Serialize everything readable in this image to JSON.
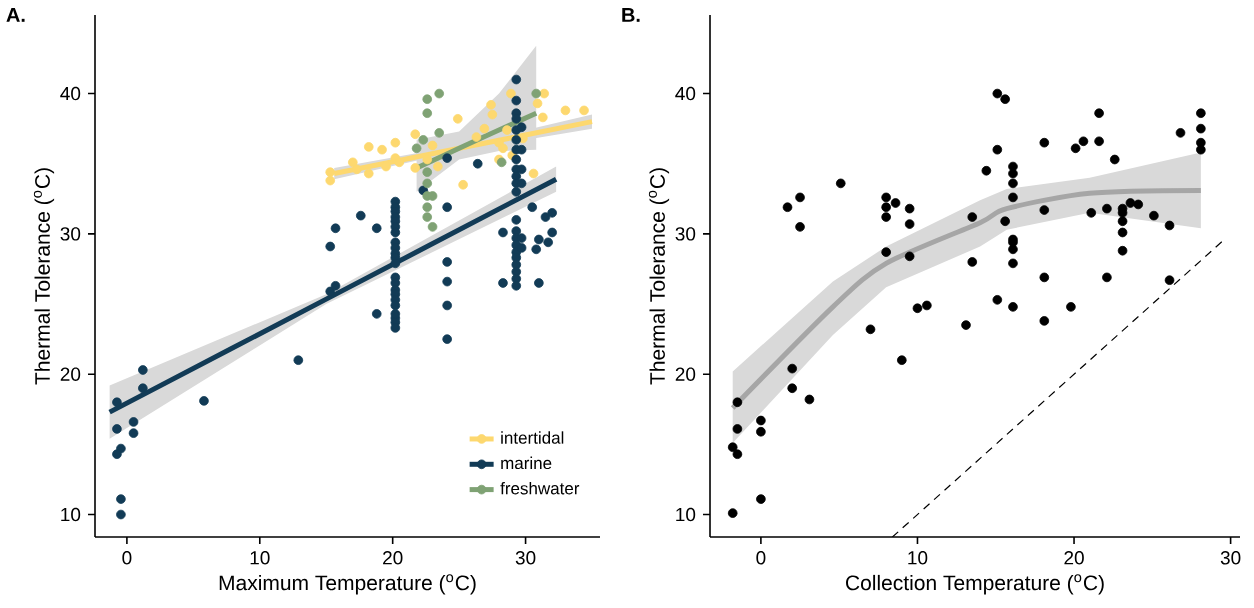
{
  "chart_data": [
    {
      "type": "scatter",
      "title": "**A.**",
      "xlabel": "Maximum Temperature ($^{o}$C)",
      "ylabel": "Thermal Tolerance ($^{o}$C)",
      "xlim": [
        -2.4,
        35.6
      ],
      "ylim": [
        8.4,
        45.6
      ],
      "xticks": [
        0,
        10,
        20,
        30
      ],
      "yticks": [
        10,
        20,
        30,
        40
      ],
      "marker": "circle",
      "legend": "bottom right",
      "series": [
        {
          "name": "intertidal",
          "color": "#fdd86f",
          "x": [
            15.3,
            15.3,
            17.0,
            17.3,
            18.2,
            18.2,
            19.2,
            19.5,
            20.2,
            20.2,
            20.5,
            21.7,
            21.7,
            22.6,
            23.0,
            23.4,
            24.9,
            25.3,
            26.3,
            26.9,
            27.4,
            27.5,
            28.0,
            28.3,
            28.6,
            29.0,
            28.0,
            28.9,
            31.4,
            30.9,
            31.3,
            30.6,
            33.0,
            34.4,
            29.8
          ],
          "values": [
            34.4,
            33.8,
            35.1,
            34.6,
            36.2,
            34.3,
            36.0,
            34.8,
            36.5,
            35.4,
            35.1,
            37.1,
            34.7,
            35.3,
            36.3,
            34.8,
            38.2,
            33.5,
            36.9,
            37.5,
            39.2,
            38.5,
            36.5,
            36.1,
            37.4,
            35.6,
            35.3,
            40.0,
            40.0,
            39.3,
            38.3,
            34.3,
            38.8,
            38.8,
            36.8
          ]
        },
        {
          "name": "marine",
          "color": "#123b56",
          "x": [
            -0.75,
            1.2,
            1.2,
            -0.75,
            0.5,
            0.5,
            -0.45,
            -0.75,
            -0.45,
            -0.45,
            5.8,
            12.9,
            15.3,
            15.7,
            15.3,
            15.7,
            17.6,
            18.8,
            20.2,
            20.2,
            20.2,
            20.2,
            20.2,
            20.2,
            20.2,
            20.2,
            20.2,
            20.2,
            20.2,
            20.2,
            20.2,
            20.2,
            20.2,
            20.2,
            20.2,
            20.2,
            20.2,
            20.2,
            20.2,
            20.2,
            18.8,
            24.1,
            24.1,
            24.1,
            24.1,
            24.1,
            24.1,
            22.3,
            26.4,
            29.3,
            29.3,
            29.3,
            29.3,
            29.3,
            29.3,
            29.3,
            29.3,
            29.3,
            29.3,
            29.3,
            29.3,
            29.3,
            29.3,
            29.3,
            29.3,
            29.3,
            29.3,
            29.3,
            29.3,
            29.3,
            29.3,
            29.7,
            29.7,
            29.7,
            29.7,
            29.7,
            29.7,
            28.3,
            28.3,
            30.5,
            31.0,
            30.8,
            31.0,
            31.7,
            32.0,
            31.5,
            32.0
          ],
          "values": [
            18.0,
            20.3,
            19.0,
            16.1,
            16.6,
            15.8,
            14.7,
            14.3,
            11.1,
            10.0,
            18.1,
            21.0,
            29.1,
            30.4,
            25.9,
            26.3,
            31.3,
            30.4,
            32.3,
            31.9,
            31.6,
            31.2,
            30.9,
            30.5,
            30.1,
            29.4,
            29.0,
            28.6,
            28.3,
            27.9,
            26.9,
            26.5,
            26.0,
            25.7,
            25.3,
            24.9,
            24.0,
            23.7,
            23.3,
            24.3,
            24.3,
            31.9,
            28.0,
            26.6,
            24.9,
            22.5,
            35.4,
            33.1,
            35.0,
            41.0,
            39.5,
            38.6,
            38.2,
            37.4,
            36.7,
            36.0,
            35.3,
            34.6,
            34.1,
            33.6,
            33.0,
            31.0,
            30.2,
            29.7,
            29.2,
            28.7,
            28.3,
            27.8,
            27.3,
            26.8,
            26.3,
            37.6,
            36.0,
            34.6,
            33.6,
            29.7,
            29.0,
            30.1,
            26.5,
            31.9,
            26.5,
            28.9,
            29.6,
            29.4,
            30.1,
            31.2,
            31.5
          ]
        },
        {
          "name": "freshwater",
          "color": "#7fa274",
          "x": [
            23.5,
            22.6,
            22.6,
            23.5,
            22.3,
            21.8,
            22.6,
            22.6,
            22.6,
            23.0,
            22.6,
            22.6,
            23.0,
            30.8,
            28.2
          ],
          "values": [
            40.0,
            39.6,
            38.6,
            37.2,
            36.7,
            36.1,
            34.4,
            33.6,
            32.7,
            32.7,
            31.9,
            31.2,
            30.5,
            40.0,
            35.1
          ]
        },
        {
          "type": "line",
          "marker": "none",
          "color": "#123b56",
          "line_style": "solid",
          "x": [
            -1.3,
            15,
            32.3
          ],
          "values": [
            17.3,
            25.35,
            33.9
          ],
          "lower": [
            15.4,
            25.0,
            33.0
          ],
          "upper": [
            19.2,
            25.7,
            34.8
          ]
        },
        {
          "type": "line",
          "marker": "none",
          "color": "#fdd86f",
          "line_style": "solid",
          "x": [
            15.6,
            25,
            35
          ],
          "values": [
            34.3,
            36.1,
            38.0
          ],
          "lower": [
            33.9,
            35.9,
            37.5
          ],
          "upper": [
            34.7,
            36.3,
            38.5
          ]
        },
        {
          "type": "line",
          "marker": "none",
          "color": "#7fa274",
          "line_style": "solid",
          "x": [
            21.8,
            25,
            28,
            30.8
          ],
          "values": [
            34.7,
            36.1,
            37.4,
            38.6
          ],
          "lower": [
            33.0,
            35.3,
            35.9,
            36.0
          ],
          "upper": [
            36.7,
            37.3,
            40.0,
            43.4
          ]
        }
      ]
    },
    {
      "type": "scatter",
      "title": "**B.**",
      "xlabel": "Collection Temperature ($^{o}$C)",
      "ylabel": "Thermal Tolerance ($^{o}$C)",
      "xlim": [
        -3.25,
        30.6
      ],
      "ylim": [
        8.4,
        45.6
      ],
      "xticks": [
        0,
        10,
        20,
        30
      ],
      "yticks": [
        10,
        20,
        30,
        40
      ],
      "marker": "circle",
      "series": [
        {
          "color": "#000000",
          "x": [
            -1.5,
            -1.5,
            -1.8,
            -1.5,
            -1.8,
            0,
            0,
            0,
            2.0,
            2.0,
            3.1,
            1.7,
            2.5,
            2.5,
            5.1,
            7.0,
            8.0,
            8.6,
            8.0,
            8.0,
            8.0,
            9.5,
            9.5,
            9.5,
            9.0,
            10.0,
            10.6,
            13.1,
            13.5,
            13.5,
            15.1,
            15.6,
            15.1,
            14.4,
            16.1,
            16.1,
            16.1,
            16.1,
            15.6,
            16.1,
            16.1,
            16.1,
            16.1,
            16.1,
            15.1,
            18.1,
            18.1,
            18.1,
            18.1,
            19.8,
            20.1,
            20.6,
            21.6,
            21.6,
            21.1,
            22.1,
            22.1,
            22.6,
            23.1,
            23.1,
            23.1,
            23.1,
            23.1,
            23.6,
            24.1,
            25.1,
            26.1,
            26.1,
            26.8,
            28.1,
            28.1,
            28.1,
            28.1
          ],
          "values": [
            18.0,
            16.1,
            14.8,
            14.3,
            10.1,
            16.7,
            15.9,
            11.1,
            20.4,
            19.0,
            18.2,
            31.9,
            32.6,
            30.5,
            33.6,
            23.2,
            32.6,
            32.2,
            31.9,
            31.2,
            28.7,
            31.8,
            30.7,
            28.4,
            21.0,
            24.7,
            24.9,
            23.5,
            31.2,
            28.0,
            40.0,
            39.6,
            36.0,
            34.5,
            34.8,
            34.3,
            33.6,
            32.6,
            30.9,
            29.6,
            29.4,
            28.9,
            27.9,
            24.8,
            25.3,
            36.5,
            31.7,
            26.9,
            23.8,
            24.8,
            36.1,
            36.6,
            38.6,
            36.6,
            31.5,
            31.8,
            26.9,
            35.3,
            31.8,
            31.5,
            30.9,
            30.1,
            28.8,
            32.2,
            32.1,
            31.3,
            30.6,
            26.7,
            37.2,
            38.6,
            37.5,
            36.5,
            36.0
          ]
        },
        {
          "type": "line",
          "marker": "none",
          "color": "#a6a6a6",
          "line_style": "solid",
          "x": [
            -1.8,
            4.6,
            8.0,
            14.0,
            15.7,
            21.0,
            28.1
          ],
          "values": [
            17.6,
            24.8,
            27.9,
            30.8,
            31.8,
            32.9,
            33.1
          ],
          "lower": [
            15.1,
            22.8,
            26.2,
            29.1,
            30.3,
            31.5,
            30.4
          ],
          "upper": [
            20.2,
            26.6,
            29.1,
            32.4,
            33.2,
            34.0,
            35.8
          ]
        },
        {
          "type": "line",
          "marker": "none",
          "color": "#000000",
          "line_style": "dashed",
          "x": [
            8.4,
            29.6
          ],
          "values": [
            8.4,
            29.6
          ]
        }
      ]
    }
  ]
}
